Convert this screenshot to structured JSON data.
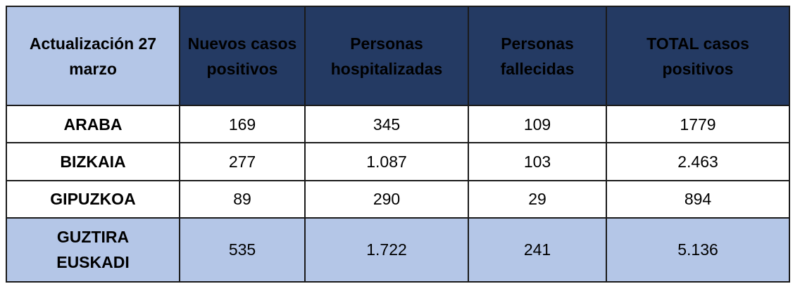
{
  "table": {
    "corner_header": "Actualización 27 marzo",
    "headers": [
      "Nuevos casos positivos",
      "Personas hospitalizadas",
      "Personas fallecidas",
      "TOTAL casos positivos"
    ],
    "rows": [
      {
        "label": "ARABA",
        "values": [
          "169",
          "345",
          "109",
          "1779"
        ]
      },
      {
        "label": "BIZKAIA",
        "values": [
          "277",
          "1.087",
          "103",
          "2.463"
        ]
      },
      {
        "label": "GIPUZKOA",
        "values": [
          "89",
          "290",
          "29",
          "894"
        ]
      }
    ],
    "total": {
      "label_line1": "GUZTIRA",
      "label_line2": "EUSKADI",
      "values": [
        "535",
        "1.722",
        "241",
        "5.136"
      ]
    }
  },
  "colors": {
    "header_dark": "#243a63",
    "header_light": "#b4c6e7",
    "border": "#1a1a1a"
  }
}
